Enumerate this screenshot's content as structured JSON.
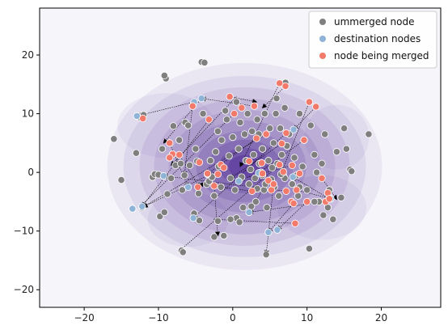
{
  "chart_data": {
    "type": "scatter",
    "xlim": [
      -26,
      28
    ],
    "ylim": [
      -23,
      28
    ],
    "x_ticks": [
      -20,
      -10,
      0,
      10,
      20
    ],
    "y_ticks": [
      -20,
      -10,
      0,
      10,
      20
    ],
    "x_tick_labels": [
      "−20",
      "−10",
      "0",
      "10",
      "20"
    ],
    "y_tick_labels": [
      "−20",
      "−10",
      "0",
      "10",
      "20"
    ],
    "grid": false,
    "legend_position": "top-right",
    "background_density": "kde-purple",
    "colors": {
      "ummerged": "#7f7f7f",
      "destination": "#8fb3d6",
      "merging": "#f27a6a",
      "density_dark": "#3b0f8a",
      "density_light": "#f5f4fa"
    },
    "series": [
      {
        "name": "ummerged node",
        "color": "#7f7f7f",
        "points": [
          [
            -16,
            5.7
          ],
          [
            -15,
            -1.3
          ],
          [
            -13,
            3.3
          ],
          [
            -12.6,
            9.4
          ],
          [
            -12,
            9.8
          ],
          [
            -12.2,
            -6
          ],
          [
            -10.8,
            -0.8
          ],
          [
            -10.5,
            -0.3
          ],
          [
            -10,
            -0.4
          ],
          [
            -9.5,
            4
          ],
          [
            -9.8,
            -7.5
          ],
          [
            -9.2,
            -6.8
          ],
          [
            -9,
            16
          ],
          [
            -9.2,
            16.5
          ],
          [
            -8.8,
            -3.7
          ],
          [
            -8.3,
            -1
          ],
          [
            -8,
            7.9
          ],
          [
            -7.7,
            1.2
          ],
          [
            -7.2,
            5.5
          ],
          [
            -7,
            1.5
          ],
          [
            -6.8,
            -3
          ],
          [
            -6.5,
            -0.5
          ],
          [
            -6.4,
            8.5
          ],
          [
            -6,
            8
          ],
          [
            -5.8,
            1.2
          ],
          [
            -5.2,
            -7
          ],
          [
            -5,
            4
          ],
          [
            -4.8,
            1.9
          ],
          [
            -4.6,
            -3.6
          ],
          [
            -4.2,
            18.8
          ],
          [
            -3.8,
            18.7
          ],
          [
            -4,
            10
          ],
          [
            -3.5,
            -2
          ],
          [
            -3.2,
            -1.5
          ],
          [
            -3,
            2
          ],
          [
            -2.8,
            -0.8
          ],
          [
            -2.5,
            -4
          ],
          [
            -2.3,
            3.5
          ],
          [
            -2,
            7
          ],
          [
            -1.9,
            1
          ],
          [
            -1.6,
            -2.5
          ],
          [
            -1.5,
            5.5
          ],
          [
            -1.2,
            -10.8
          ],
          [
            -1,
            10.5
          ],
          [
            -0.8,
            9
          ],
          [
            -0.5,
            2.8
          ],
          [
            -0.3,
            -1
          ],
          [
            0,
            6
          ],
          [
            0.3,
            -3
          ],
          [
            0.5,
            12
          ],
          [
            0.8,
            4
          ],
          [
            1,
            8.5
          ],
          [
            1.2,
            -0.8
          ],
          [
            1.4,
            -6
          ],
          [
            1.6,
            6.5
          ],
          [
            1.8,
            2
          ],
          [
            2,
            10
          ],
          [
            2.2,
            -2
          ],
          [
            2.4,
            0.5
          ],
          [
            2.6,
            7
          ],
          [
            2.8,
            3
          ],
          [
            3,
            -1
          ],
          [
            3.1,
            -5
          ],
          [
            3.3,
            9
          ],
          [
            3.5,
            6.5
          ],
          [
            3.6,
            1.5
          ],
          [
            3.8,
            0
          ],
          [
            4,
            4
          ],
          [
            4.2,
            -3
          ],
          [
            4.3,
            10
          ],
          [
            4.5,
            -14
          ],
          [
            4.6,
            -6
          ],
          [
            4.8,
            2
          ],
          [
            5,
            7.5
          ],
          [
            5.2,
            -1.2
          ],
          [
            5.3,
            0.8
          ],
          [
            5.5,
            5
          ],
          [
            5.6,
            -2.5
          ],
          [
            5.8,
            10
          ],
          [
            6,
            1.5
          ],
          [
            6.2,
            -4
          ],
          [
            6.4,
            7.5
          ],
          [
            6.6,
            3
          ],
          [
            6.8,
            -0.5
          ],
          [
            7,
            -1
          ],
          [
            7,
            11
          ],
          [
            7.3,
            4.5
          ],
          [
            7.6,
            6.5
          ],
          [
            8,
            -2
          ],
          [
            8.3,
            2.5
          ],
          [
            8.6,
            -0.5
          ],
          [
            8.8,
            -4
          ],
          [
            9,
            10
          ],
          [
            9.4,
            1
          ],
          [
            9.6,
            5.5
          ],
          [
            10,
            -3
          ],
          [
            10.3,
            -13
          ],
          [
            10.5,
            8
          ],
          [
            11,
            3
          ],
          [
            11.3,
            0
          ],
          [
            11.6,
            -5
          ],
          [
            12,
            1.5
          ],
          [
            12.4,
            6.5
          ],
          [
            12.8,
            -6
          ],
          [
            13,
            -3
          ],
          [
            13.5,
            -8
          ],
          [
            14,
            3.5
          ],
          [
            14.6,
            -4.3
          ],
          [
            15,
            7.5
          ],
          [
            15.3,
            4
          ],
          [
            15.8,
            0.5
          ],
          [
            16,
            0.2
          ],
          [
            18.3,
            6.5
          ],
          [
            12.2,
            -7.3
          ],
          [
            11,
            -5
          ],
          [
            9,
            -2.5
          ],
          [
            2.5,
            -5.8
          ],
          [
            0.5,
            -7.8
          ],
          [
            -0.3,
            -8
          ],
          [
            -2,
            -8.3
          ],
          [
            -4.5,
            -8.2
          ],
          [
            -6.9,
            -13.3
          ],
          [
            -6.7,
            -13.6
          ],
          [
            6.5,
            -0.3
          ],
          [
            4.4,
            -2
          ],
          [
            4,
            -0.5
          ],
          [
            7.1,
            15.3
          ],
          [
            5.9,
            12.6
          ],
          [
            -2.5,
            -11
          ],
          [
            0.9,
            -8.5
          ],
          [
            3.3,
            -2.8
          ]
        ]
      },
      {
        "name": "destination nodes",
        "color": "#8fb3d6",
        "points": [
          [
            -13.5,
            -6.2
          ],
          [
            -5.3,
            -7.8
          ],
          [
            -6,
            -2.5
          ],
          [
            -12.2,
            -5.8
          ],
          [
            -12.9,
            9.6
          ],
          [
            -9.3,
            -0.6
          ],
          [
            2.2,
            -6.8
          ],
          [
            6,
            -9.8
          ],
          [
            4.8,
            -10.2
          ],
          [
            0.8,
            -1.5
          ],
          [
            -3.4,
            -0.3
          ],
          [
            8.1,
            -0.8
          ],
          [
            13.2,
            -4.5
          ],
          [
            8.2,
            7.3
          ],
          [
            -4.2,
            12.6
          ],
          [
            -5.2,
            12
          ],
          [
            3.5,
            -0.1
          ]
        ]
      },
      {
        "name": "node being merged",
        "color": "#f27a6a",
        "points": [
          [
            -12.1,
            9.2
          ],
          [
            -8.5,
            5
          ],
          [
            -8.1,
            3.1
          ],
          [
            -8.5,
            2.5
          ],
          [
            -7.2,
            3
          ],
          [
            -5.4,
            11.3
          ],
          [
            -4.7,
            -2.5
          ],
          [
            -4.5,
            1.7
          ],
          [
            -3.4,
            -0.2
          ],
          [
            -3.2,
            9
          ],
          [
            -2.5,
            -2.3
          ],
          [
            -2,
            -0.3
          ],
          [
            -1.6,
            1.3
          ],
          [
            -1.2,
            0.8
          ],
          [
            -0.4,
            12.9
          ],
          [
            0.2,
            10
          ],
          [
            1.2,
            11
          ],
          [
            2.2,
            1.9
          ],
          [
            2.6,
            -3.2
          ],
          [
            2.9,
            11.3
          ],
          [
            3.2,
            5.8
          ],
          [
            3.9,
            1.6
          ],
          [
            4.5,
            6.5
          ],
          [
            4.8,
            -1.4
          ],
          [
            5.2,
            -3
          ],
          [
            5.5,
            -2
          ],
          [
            6.3,
            1.3
          ],
          [
            6.6,
            4.9
          ],
          [
            6.8,
            0.1
          ],
          [
            7.2,
            -3.2
          ],
          [
            7.2,
            6.7
          ],
          [
            7.9,
            -5
          ],
          [
            8,
            1.2
          ],
          [
            8.2,
            -5.3
          ],
          [
            8.4,
            -8.7
          ],
          [
            8.6,
            -3
          ],
          [
            9,
            -0.2
          ],
          [
            9.6,
            5.5
          ],
          [
            10,
            -5
          ],
          [
            10.3,
            12
          ],
          [
            11.2,
            11.2
          ],
          [
            12,
            -1
          ],
          [
            12.5,
            -5
          ],
          [
            12.8,
            -3.5
          ],
          [
            13,
            -4.5
          ],
          [
            7.1,
            14.7
          ],
          [
            6.3,
            15.2
          ],
          [
            4,
            -0.2
          ]
        ]
      }
    ],
    "arrows": [
      [
        [
          -5.2,
          12
        ],
        [
          -12.9,
          9.6
        ]
      ],
      [
        [
          -4.2,
          12.6
        ],
        [
          -9.3,
          5
        ]
      ],
      [
        [
          -3.2,
          9
        ],
        [
          -12.2,
          -5.8
        ]
      ],
      [
        [
          0.5,
          12.9
        ],
        [
          -8.3,
          1.2
        ]
      ],
      [
        [
          2.9,
          11.3
        ],
        [
          -4.2,
          12.6
        ]
      ],
      [
        [
          4.5,
          6.5
        ],
        [
          -12.2,
          -6
        ]
      ],
      [
        [
          7.2,
          6.7
        ],
        [
          -5.3,
          -7.8
        ]
      ],
      [
        [
          6.3,
          1.3
        ],
        [
          -7.2,
          -13.4
        ]
      ],
      [
        [
          8.2,
          -5.3
        ],
        [
          4.8,
          -10.2
        ]
      ],
      [
        [
          9.6,
          5.5
        ],
        [
          3.5,
          -0.1
        ]
      ],
      [
        [
          11.2,
          11.2
        ],
        [
          8.2,
          7.3
        ]
      ],
      [
        [
          10,
          -5
        ],
        [
          6,
          -9.8
        ]
      ],
      [
        [
          12,
          -1
        ],
        [
          14,
          -4.6
        ]
      ],
      [
        [
          8.4,
          -8.7
        ],
        [
          -2.5,
          -8
        ]
      ],
      [
        [
          12.5,
          -5
        ],
        [
          2.2,
          -6.8
        ]
      ],
      [
        [
          8,
          1.2
        ],
        [
          1,
          -1.2
        ]
      ],
      [
        [
          -8.5,
          5
        ],
        [
          -6,
          -2.5
        ]
      ],
      [
        [
          -2.5,
          -2.3
        ],
        [
          -2,
          -10.8
        ]
      ],
      [
        [
          -7.2,
          3
        ],
        [
          -4.5,
          -2.5
        ]
      ],
      [
        [
          6.6,
          4.9
        ],
        [
          -0.3,
          -1
        ]
      ],
      [
        [
          3.2,
          5.8
        ],
        [
          -3.4,
          -0.3
        ]
      ],
      [
        [
          0.2,
          10
        ],
        [
          -12.5,
          -5.9
        ]
      ],
      [
        [
          7.1,
          14.7
        ],
        [
          4,
          11
        ]
      ],
      [
        [
          5.5,
          -2
        ],
        [
          4.5,
          -14
        ]
      ],
      [
        [
          2.6,
          -3.2
        ],
        [
          -4.5,
          -2
        ]
      ],
      [
        [
          -1.2,
          0.8
        ],
        [
          -12,
          -5.9
        ]
      ],
      [
        [
          10.3,
          12
        ],
        [
          6.5,
          -0.3
        ]
      ],
      [
        [
          8.6,
          -3
        ],
        [
          13.2,
          -4.5
        ]
      ],
      [
        [
          4.8,
          -1.4
        ],
        [
          2.2,
          -6.8
        ]
      ],
      [
        [
          7.2,
          -3.2
        ],
        [
          -9.3,
          -0.6
        ]
      ],
      [
        [
          -0.4,
          12.9
        ],
        [
          3.2,
          12
        ]
      ],
      [
        [
          -5.4,
          11.3
        ],
        [
          -6.5,
          -0.5
        ]
      ],
      [
        [
          13,
          -4.5
        ],
        [
          8.1,
          -0.8
        ]
      ],
      [
        [
          6.3,
          15.2
        ],
        [
          1,
          1
        ]
      ]
    ]
  },
  "legend": {
    "items": [
      {
        "label": "ummerged node",
        "color": "#7f7f7f"
      },
      {
        "label": "destination nodes",
        "color": "#8fb3d6"
      },
      {
        "label": "node being merged",
        "color": "#f27a6a"
      }
    ]
  }
}
